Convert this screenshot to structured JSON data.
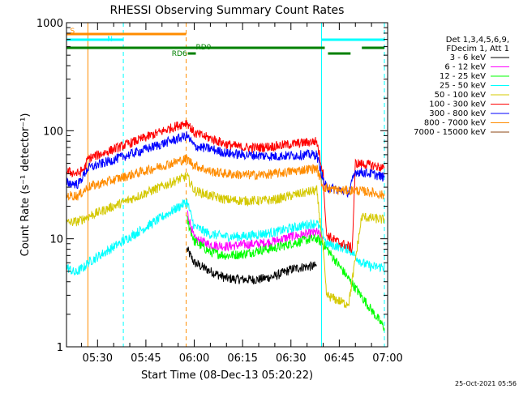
{
  "chart_data": {
    "type": "line",
    "title": "RHESSI Observing Summary Count Rates",
    "xlabel": "Start Time (08-Dec-13 05:20:22)",
    "ylabel": "Count Rate (s⁻¹ detector⁻¹)",
    "yscale": "log",
    "ylim": [
      1,
      1000
    ],
    "xlim": [
      "05:20:22",
      "07:00:00"
    ],
    "x_ticks": [
      "05:30",
      "05:45",
      "06:00",
      "06:15",
      "06:30",
      "06:45",
      "07:00"
    ],
    "y_ticks": [
      "1",
      "10",
      "100",
      "1000"
    ],
    "legend_header": [
      "Det 1,3,4,5,6,9,",
      "FDecim 1, Att 1"
    ],
    "legend_position": "right",
    "timestamp": "25-Oct-2021 05:56",
    "flags": {
      "saa": {
        "label": "S",
        "color": "#ff8c00",
        "start": "05:20:22",
        "end": "05:57:30"
      },
      "night": {
        "label": "N",
        "color": "#00ffff",
        "segments": [
          [
            "05:20:22",
            "05:38:00"
          ],
          [
            "06:39:30",
            "06:59:00"
          ]
        ]
      },
      "rd0": {
        "label": "RD0",
        "color": "#008000",
        "segments": [
          [
            "05:20:22",
            "06:40:30"
          ],
          [
            "06:52:00",
            "06:59:00"
          ]
        ]
      },
      "rd6": {
        "label": "RD6",
        "color": "#008000",
        "segments": [
          [
            "05:58:00",
            "06:00:30"
          ],
          [
            "06:41:30",
            "06:48:30"
          ]
        ]
      }
    },
    "markers": [
      {
        "time": "05:27:00",
        "color": "#ff8c00",
        "style": "solid"
      },
      {
        "time": "05:38:00",
        "color": "#00ffff",
        "style": "dashed"
      },
      {
        "time": "05:57:30",
        "color": "#ff8c00",
        "style": "dashed"
      },
      {
        "time": "06:39:30",
        "color": "#00ffff",
        "style": "solid"
      },
      {
        "time": "06:59:00",
        "color": "#00ffff",
        "style": "dashed"
      }
    ],
    "series": [
      {
        "name": "3 - 6 keV",
        "color": "#000000",
        "points": [
          [
            "05:57:45",
            8
          ],
          [
            "06:00",
            6
          ],
          [
            "06:05",
            5
          ],
          [
            "06:10",
            4.3
          ],
          [
            "06:15",
            4.2
          ],
          [
            "06:20",
            4.2
          ],
          [
            "06:25",
            4.5
          ],
          [
            "06:30",
            5.2
          ],
          [
            "06:34",
            5.5
          ],
          [
            "06:38",
            5.6
          ]
        ]
      },
      {
        "name": "6 - 12 keV",
        "color": "#ff00ff",
        "points": [
          [
            "05:57:45",
            18
          ],
          [
            "06:00",
            10
          ],
          [
            "06:05",
            8.8
          ],
          [
            "06:10",
            8.5
          ],
          [
            "06:15",
            8.8
          ],
          [
            "06:20",
            9
          ],
          [
            "06:25",
            9.5
          ],
          [
            "06:30",
            10.5
          ],
          [
            "06:35",
            11
          ],
          [
            "06:38",
            11.5
          ],
          [
            "06:40",
            10
          ]
        ]
      },
      {
        "name": "12 - 25 keV",
        "color": "#00ff00",
        "points": [
          [
            "05:57:45",
            15
          ],
          [
            "06:00",
            9.5
          ],
          [
            "06:05",
            7.5
          ],
          [
            "06:10",
            7
          ],
          [
            "06:15",
            7.2
          ],
          [
            "06:20",
            7.8
          ],
          [
            "06:25",
            8.2
          ],
          [
            "06:30",
            9
          ],
          [
            "06:35",
            9.8
          ],
          [
            "06:38",
            10
          ],
          [
            "06:40",
            9
          ],
          [
            "06:59",
            1.5
          ]
        ]
      },
      {
        "name": "25 - 50 keV",
        "color": "#00ffff",
        "points": [
          [
            "05:20:22",
            5.5
          ],
          [
            "05:23",
            4.8
          ],
          [
            "05:26",
            5.5
          ],
          [
            "05:27",
            6
          ],
          [
            "05:57:45",
            22
          ],
          [
            "06:00",
            13
          ],
          [
            "06:05",
            11
          ],
          [
            "06:10",
            10.5
          ],
          [
            "06:15",
            10.5
          ],
          [
            "06:20",
            11
          ],
          [
            "06:25",
            11.5
          ],
          [
            "06:30",
            12.5
          ],
          [
            "06:35",
            13.5
          ],
          [
            "06:38",
            14
          ],
          [
            "06:40",
            11
          ],
          [
            "06:41",
            9
          ],
          [
            "06:48",
            8
          ],
          [
            "06:52",
            6
          ],
          [
            "06:55",
            5.5
          ],
          [
            "06:59",
            5.5
          ]
        ]
      },
      {
        "name": "50 - 100 keV",
        "color": "#d4c800",
        "points": [
          [
            "05:20:22",
            14
          ],
          [
            "05:24",
            14.5
          ],
          [
            "05:27",
            16
          ],
          [
            "05:57:45",
            38
          ],
          [
            "06:00",
            28
          ],
          [
            "06:05",
            25
          ],
          [
            "06:10",
            23
          ],
          [
            "06:15",
            22.5
          ],
          [
            "06:20",
            22.5
          ],
          [
            "06:25",
            23
          ],
          [
            "06:30",
            25
          ],
          [
            "06:35",
            27
          ],
          [
            "06:38",
            28
          ],
          [
            "06:40",
            8
          ],
          [
            "06:41",
            3
          ],
          [
            "06:47",
            2.5
          ],
          [
            "06:48",
            2.6
          ],
          [
            "06:52",
            16
          ],
          [
            "06:55",
            15.5
          ],
          [
            "06:59",
            15
          ]
        ]
      },
      {
        "name": "100 - 300 keV",
        "color": "#ff0000",
        "points": [
          [
            "05:20:22",
            42
          ],
          [
            "05:24",
            40
          ],
          [
            "05:26",
            45
          ],
          [
            "05:27",
            55
          ],
          [
            "05:57:45",
            120
          ],
          [
            "06:00",
            95
          ],
          [
            "06:05",
            85
          ],
          [
            "06:10",
            75
          ],
          [
            "06:15",
            70
          ],
          [
            "06:20",
            70
          ],
          [
            "06:25",
            72
          ],
          [
            "06:30",
            75
          ],
          [
            "06:35",
            78
          ],
          [
            "06:38",
            80
          ],
          [
            "06:40",
            40
          ],
          [
            "06:41",
            11
          ],
          [
            "06:44",
            9.5
          ],
          [
            "06:48",
            8.5
          ],
          [
            "06:49",
            8
          ],
          [
            "06:50",
            50
          ],
          [
            "06:55",
            48
          ],
          [
            "06:59",
            45
          ]
        ]
      },
      {
        "name": "300 - 800 keV",
        "color": "#0000ff",
        "points": [
          [
            "05:20:22",
            33
          ],
          [
            "05:24",
            32
          ],
          [
            "05:27",
            45
          ],
          [
            "05:57:45",
            90
          ],
          [
            "06:00",
            72
          ],
          [
            "06:05",
            68
          ],
          [
            "06:10",
            62
          ],
          [
            "06:15",
            60
          ],
          [
            "06:20",
            59
          ],
          [
            "06:25",
            58
          ],
          [
            "06:30",
            59
          ],
          [
            "06:35",
            60
          ],
          [
            "06:38",
            60
          ],
          [
            "06:40",
            35
          ],
          [
            "06:41",
            30
          ],
          [
            "06:48",
            27
          ],
          [
            "06:50",
            42
          ],
          [
            "06:55",
            40
          ],
          [
            "06:59",
            37
          ]
        ]
      },
      {
        "name": "800 - 7000 keV",
        "color": "#ff8c00",
        "points": [
          [
            "05:20:22",
            25
          ],
          [
            "05:24",
            25
          ],
          [
            "05:27",
            30
          ],
          [
            "05:57:45",
            55
          ],
          [
            "06:00",
            48
          ],
          [
            "06:05",
            42
          ],
          [
            "06:10",
            40
          ],
          [
            "06:15",
            39
          ],
          [
            "06:20",
            39
          ],
          [
            "06:25",
            40
          ],
          [
            "06:30",
            42
          ],
          [
            "06:35",
            44
          ],
          [
            "06:38",
            45
          ],
          [
            "06:40",
            30
          ],
          [
            "06:45",
            28
          ],
          [
            "06:50",
            28
          ],
          [
            "06:55",
            27
          ],
          [
            "06:59",
            25
          ]
        ]
      },
      {
        "name": "7000 - 15000 keV",
        "color": "#8b4513",
        "points": []
      }
    ]
  }
}
